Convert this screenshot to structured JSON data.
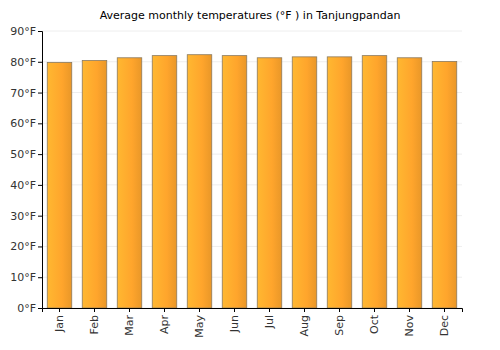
{
  "chart_data": {
    "type": "bar",
    "title": "Average monthly temperatures (°F ) in Tanjungpandan",
    "categories": [
      "Jan",
      "Feb",
      "Mar",
      "Apr",
      "May",
      "Jun",
      "Jul",
      "Aug",
      "Sep",
      "Oct",
      "Nov",
      "Dec"
    ],
    "values": [
      79.8,
      80.4,
      81.3,
      82.0,
      82.3,
      82.0,
      81.3,
      81.6,
      81.6,
      82.0,
      81.3,
      80.1
    ],
    "color": "#ffa52c",
    "ylim": [
      0,
      90
    ],
    "yticks": [
      {
        "value": 0,
        "label": "0°F"
      },
      {
        "value": 10,
        "label": "10°F"
      },
      {
        "value": 20,
        "label": "20°F"
      },
      {
        "value": 30,
        "label": "30°F"
      },
      {
        "value": 40,
        "label": "40°F"
      },
      {
        "value": 50,
        "label": "50°F"
      },
      {
        "value": 60,
        "label": "60°F"
      },
      {
        "value": 70,
        "label": "70°F"
      },
      {
        "value": 80,
        "label": "80°F"
      },
      {
        "value": 90,
        "label": "90°F"
      }
    ],
    "grid": true
  }
}
